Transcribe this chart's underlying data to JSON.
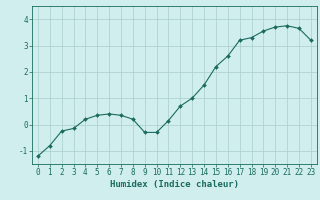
{
  "x": [
    0,
    1,
    2,
    3,
    4,
    5,
    6,
    7,
    8,
    9,
    10,
    11,
    12,
    13,
    14,
    15,
    16,
    17,
    18,
    19,
    20,
    21,
    22,
    23
  ],
  "y": [
    -1.2,
    -0.8,
    -0.25,
    -0.15,
    0.2,
    0.35,
    0.4,
    0.35,
    0.2,
    -0.3,
    -0.3,
    0.15,
    0.7,
    1.0,
    1.5,
    2.2,
    2.6,
    3.2,
    3.3,
    3.55,
    3.7,
    3.75,
    3.65,
    3.2
  ],
  "line_color": "#1a6b5e",
  "marker": "D",
  "marker_size": 2.0,
  "bg_color": "#d0eeee",
  "grid_color": "#aacccc",
  "xlabel": "Humidex (Indice chaleur)",
  "xlabel_fontsize": 6.5,
  "tick_fontsize": 5.5,
  "ylim": [
    -1.5,
    4.5
  ],
  "xlim": [
    -0.5,
    23.5
  ],
  "yticks": [
    -1,
    0,
    1,
    2,
    3,
    4
  ],
  "xticks": [
    0,
    1,
    2,
    3,
    4,
    5,
    6,
    7,
    8,
    9,
    10,
    11,
    12,
    13,
    14,
    15,
    16,
    17,
    18,
    19,
    20,
    21,
    22,
    23
  ]
}
